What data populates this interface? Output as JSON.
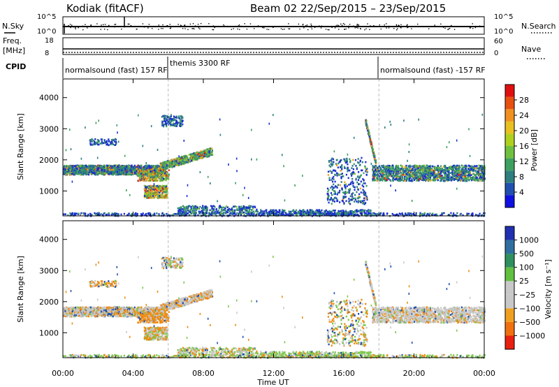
{
  "header": {
    "radar_title": "Kodiak (fitACF)",
    "beam_title": "Beam 02  22/Sep/2015 – 23/Sep/2015"
  },
  "colors": {
    "power_scale": [
      "#1010e0",
      "#2050b0",
      "#2f7f7f",
      "#3ea060",
      "#70c040",
      "#b0d020",
      "#e8c020",
      "#f09020",
      "#e85010",
      "#e01010"
    ],
    "velocity_scale": [
      "#2030b0",
      "#2e6fa0",
      "#2f8f5f",
      "#60c040",
      "#c8c8c8",
      "#c8c8c8",
      "#f0a020",
      "#f07010",
      "#e82010"
    ]
  },
  "chart_data": [
    {
      "type": "line",
      "name": "noise-panel",
      "left_label_1": "N.Sky",
      "right_label_1": "N.Search",
      "left_ticks": [
        "10^5",
        "10^0"
      ],
      "right_ticks": [
        "10^5",
        "10^0"
      ]
    },
    {
      "type": "line",
      "name": "freq-panel",
      "left_label_1": "Freq.",
      "left_label_2": "[MHz]",
      "left_ticks": [
        "18",
        "8"
      ],
      "right_ticks": [
        "60",
        "0"
      ],
      "right_label_1": "Nave"
    },
    {
      "type": "table",
      "name": "cpid-panel",
      "label": "CPID",
      "segments": [
        {
          "label": "normalsound (fast) 157 RF",
          "start_hour": 0
        },
        {
          "label": "themis 3300 RF",
          "start_hour": 6
        },
        {
          "label": "normalsound (fast) -157 RF",
          "start_hour": 18
        }
      ]
    },
    {
      "type": "heatmap",
      "name": "power-panel",
      "ylabel": "Slant Range [km]",
      "yticks": [
        1000,
        2000,
        3000,
        4000
      ],
      "ylim": [
        200,
        4600
      ],
      "xlim": [
        0,
        24
      ],
      "colorbar_label": "Power [dB]",
      "colorbar_ticks": [
        4,
        8,
        12,
        16,
        20,
        24,
        28
      ]
    },
    {
      "type": "heatmap",
      "name": "velocity-panel",
      "ylabel": "Slant Range [km]",
      "yticks": [
        1000,
        2000,
        3000,
        4000
      ],
      "ylim": [
        200,
        4600
      ],
      "xlim": [
        0,
        24
      ],
      "colorbar_label": "Velocity [m s⁻¹]",
      "colorbar_ticks": [
        "1000",
        "500",
        "100",
        "25",
        "−25",
        "−100",
        "−500",
        "−1000"
      ]
    }
  ],
  "xaxis": {
    "ticks": [
      "00:00",
      "04:00",
      "08:00",
      "12:00",
      "16:00",
      "20:00",
      "00:00"
    ],
    "label": "Time UT"
  }
}
